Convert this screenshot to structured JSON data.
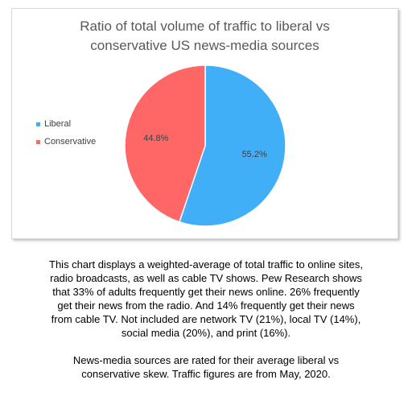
{
  "chart_data": {
    "type": "pie",
    "title": "Ratio of total volume of traffic to liberal vs conservative US news-media sources",
    "title_lines": [
      "Ratio of total volume of traffic to liberal vs",
      "conservative US news-media sources"
    ],
    "categories": [
      "Liberal",
      "Conservative"
    ],
    "values": [
      55.2,
      44.8
    ],
    "data_labels": [
      "55.2%",
      "44.8%"
    ],
    "colors": [
      "#41AEF8",
      "#FF6666"
    ],
    "legend_position": "left"
  },
  "caption": {
    "paragraph1_lines": [
      "This chart displays a weighted-average of total traffic to online sites,",
      "radio broadcasts, as well as cable TV shows.  Pew Research shows",
      "that 33% of adults frequently get their news online.  26% frequently",
      "get their news from the radio.  And 14% frequently get their news",
      "from cable TV.  Not included are network TV (21%), local TV (14%),",
      "social media (20%), and print (16%)."
    ],
    "paragraph2_lines": [
      "News-media sources are rated for their average liberal vs",
      "conservative skew.  Traffic figures are from May, 2020."
    ]
  }
}
